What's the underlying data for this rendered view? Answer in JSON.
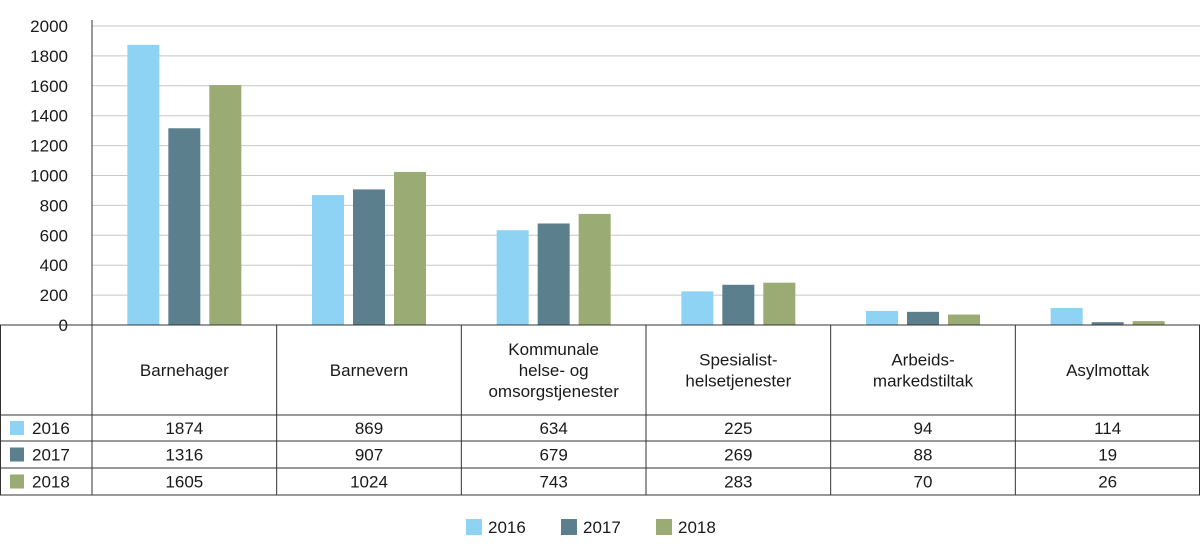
{
  "chart_data": {
    "type": "bar",
    "categories": [
      [
        "Barnehager"
      ],
      [
        "Barnevern"
      ],
      [
        "Kommunale",
        "helse- og",
        "omsorgstjenester"
      ],
      [
        "Spesialist-",
        "helsetjenester"
      ],
      [
        "Arbeids-",
        "markedstiltak"
      ],
      [
        "Asylmottak"
      ]
    ],
    "series": [
      {
        "name": "2016",
        "color": "#8ed3f4",
        "values": [
          1874,
          869,
          634,
          225,
          94,
          114
        ]
      },
      {
        "name": "2017",
        "color": "#5b7f8c",
        "values": [
          1316,
          907,
          679,
          269,
          88,
          19
        ]
      },
      {
        "name": "2018",
        "color": "#9aab74",
        "values": [
          1605,
          1024,
          743,
          283,
          70,
          26
        ]
      }
    ],
    "yticks": [
      "0",
      "200",
      "400",
      "600",
      "800",
      "1000",
      "1200",
      "1400",
      "1600",
      "1800",
      "2000"
    ],
    "ylim": [
      0,
      2000
    ],
    "grid": true,
    "legend_position": "bottom",
    "data_table": true
  }
}
